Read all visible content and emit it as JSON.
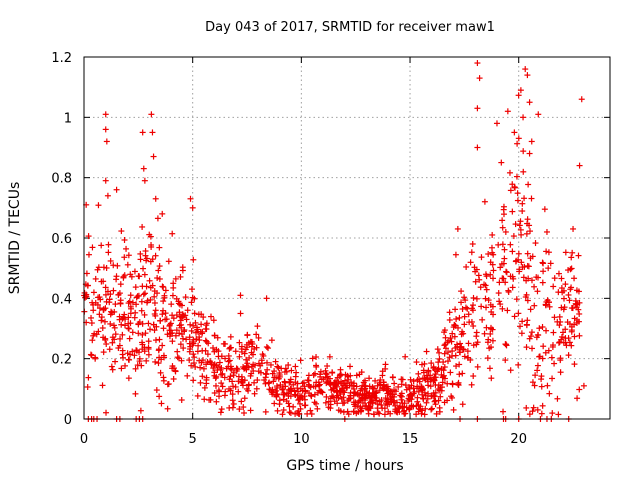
{
  "chart_data": {
    "type": "scatter",
    "title": "Day 043 of 2017, SRMTID for receiver maw1",
    "xlabel": "GPS time / hours",
    "ylabel": "SRMTID / TECUs",
    "xlim": [
      0,
      24.2
    ],
    "ylim": [
      0,
      1.2
    ],
    "xticks": [
      0,
      5,
      10,
      15,
      20
    ],
    "xtick_labels": [
      "0",
      "5",
      "10",
      "15",
      "20"
    ],
    "yticks": [
      0,
      0.2,
      0.4,
      0.6,
      0.8,
      1,
      1.2
    ],
    "ytick_labels": [
      "0",
      "0.2",
      "0.4",
      "0.6",
      "0.8",
      "1",
      "1.2"
    ],
    "grid": true,
    "marker": "+",
    "series": [
      {
        "name": "SRMTID",
        "color": "#ee0000",
        "density_profile": {
          "hours": [
            0,
            1,
            2,
            3,
            4,
            5,
            6,
            7,
            8,
            9,
            10,
            11,
            12,
            13,
            14,
            15,
            16,
            17,
            18,
            19,
            20,
            21,
            22,
            22.8
          ],
          "median": [
            0.4,
            0.35,
            0.32,
            0.36,
            0.3,
            0.26,
            0.18,
            0.14,
            0.18,
            0.1,
            0.09,
            0.1,
            0.09,
            0.08,
            0.09,
            0.07,
            0.1,
            0.25,
            0.35,
            0.4,
            0.55,
            0.3,
            0.33,
            0.35
          ],
          "spread": [
            0.12,
            0.13,
            0.12,
            0.14,
            0.11,
            0.1,
            0.07,
            0.06,
            0.07,
            0.04,
            0.04,
            0.04,
            0.04,
            0.04,
            0.04,
            0.04,
            0.05,
            0.1,
            0.13,
            0.15,
            0.2,
            0.17,
            0.14,
            0.14
          ]
        },
        "highlights": [
          {
            "x": 1.0,
            "y": 1.01
          },
          {
            "x": 1.0,
            "y": 0.96
          },
          {
            "x": 1.05,
            "y": 0.92
          },
          {
            "x": 1.0,
            "y": 0.79
          },
          {
            "x": 1.1,
            "y": 0.74
          },
          {
            "x": 1.5,
            "y": 0.76
          },
          {
            "x": 2.7,
            "y": 0.95
          },
          {
            "x": 2.75,
            "y": 0.83
          },
          {
            "x": 2.8,
            "y": 0.79
          },
          {
            "x": 3.1,
            "y": 1.01
          },
          {
            "x": 3.15,
            "y": 0.95
          },
          {
            "x": 3.2,
            "y": 0.87
          },
          {
            "x": 3.3,
            "y": 0.73
          },
          {
            "x": 4.9,
            "y": 0.73
          },
          {
            "x": 5.0,
            "y": 0.7
          },
          {
            "x": 3.6,
            "y": 0.68
          },
          {
            "x": 0.1,
            "y": 0.71
          },
          {
            "x": 8.4,
            "y": 0.4
          },
          {
            "x": 7.2,
            "y": 0.41
          },
          {
            "x": 18.1,
            "y": 1.18
          },
          {
            "x": 18.2,
            "y": 1.13
          },
          {
            "x": 18.1,
            "y": 1.03
          },
          {
            "x": 18.1,
            "y": 0.9
          },
          {
            "x": 19.0,
            "y": 0.98
          },
          {
            "x": 19.5,
            "y": 1.02
          },
          {
            "x": 19.8,
            "y": 0.95
          },
          {
            "x": 20.1,
            "y": 1.09
          },
          {
            "x": 20.3,
            "y": 1.16
          },
          {
            "x": 20.4,
            "y": 1.14
          },
          {
            "x": 20.5,
            "y": 1.05
          },
          {
            "x": 20.2,
            "y": 1.0
          },
          {
            "x": 20.6,
            "y": 0.92
          },
          {
            "x": 20.9,
            "y": 1.01
          },
          {
            "x": 20.5,
            "y": 0.88
          },
          {
            "x": 22.9,
            "y": 1.06
          },
          {
            "x": 22.8,
            "y": 0.84
          },
          {
            "x": 19.2,
            "y": 0.85
          },
          {
            "x": 17.2,
            "y": 0.63
          },
          {
            "x": 21.3,
            "y": 0.62
          },
          {
            "x": 22.5,
            "y": 0.63
          },
          {
            "x": 23.0,
            "y": 0.11
          }
        ],
        "zeros": [
          0.2,
          0.35,
          0.45,
          0.6,
          1.5,
          1.65,
          2.4,
          2.55,
          2.7,
          12.0,
          17.3,
          18.1,
          19.3,
          19.4,
          20.0,
          21.0,
          21.3,
          21.5,
          22.3
        ]
      }
    ]
  }
}
